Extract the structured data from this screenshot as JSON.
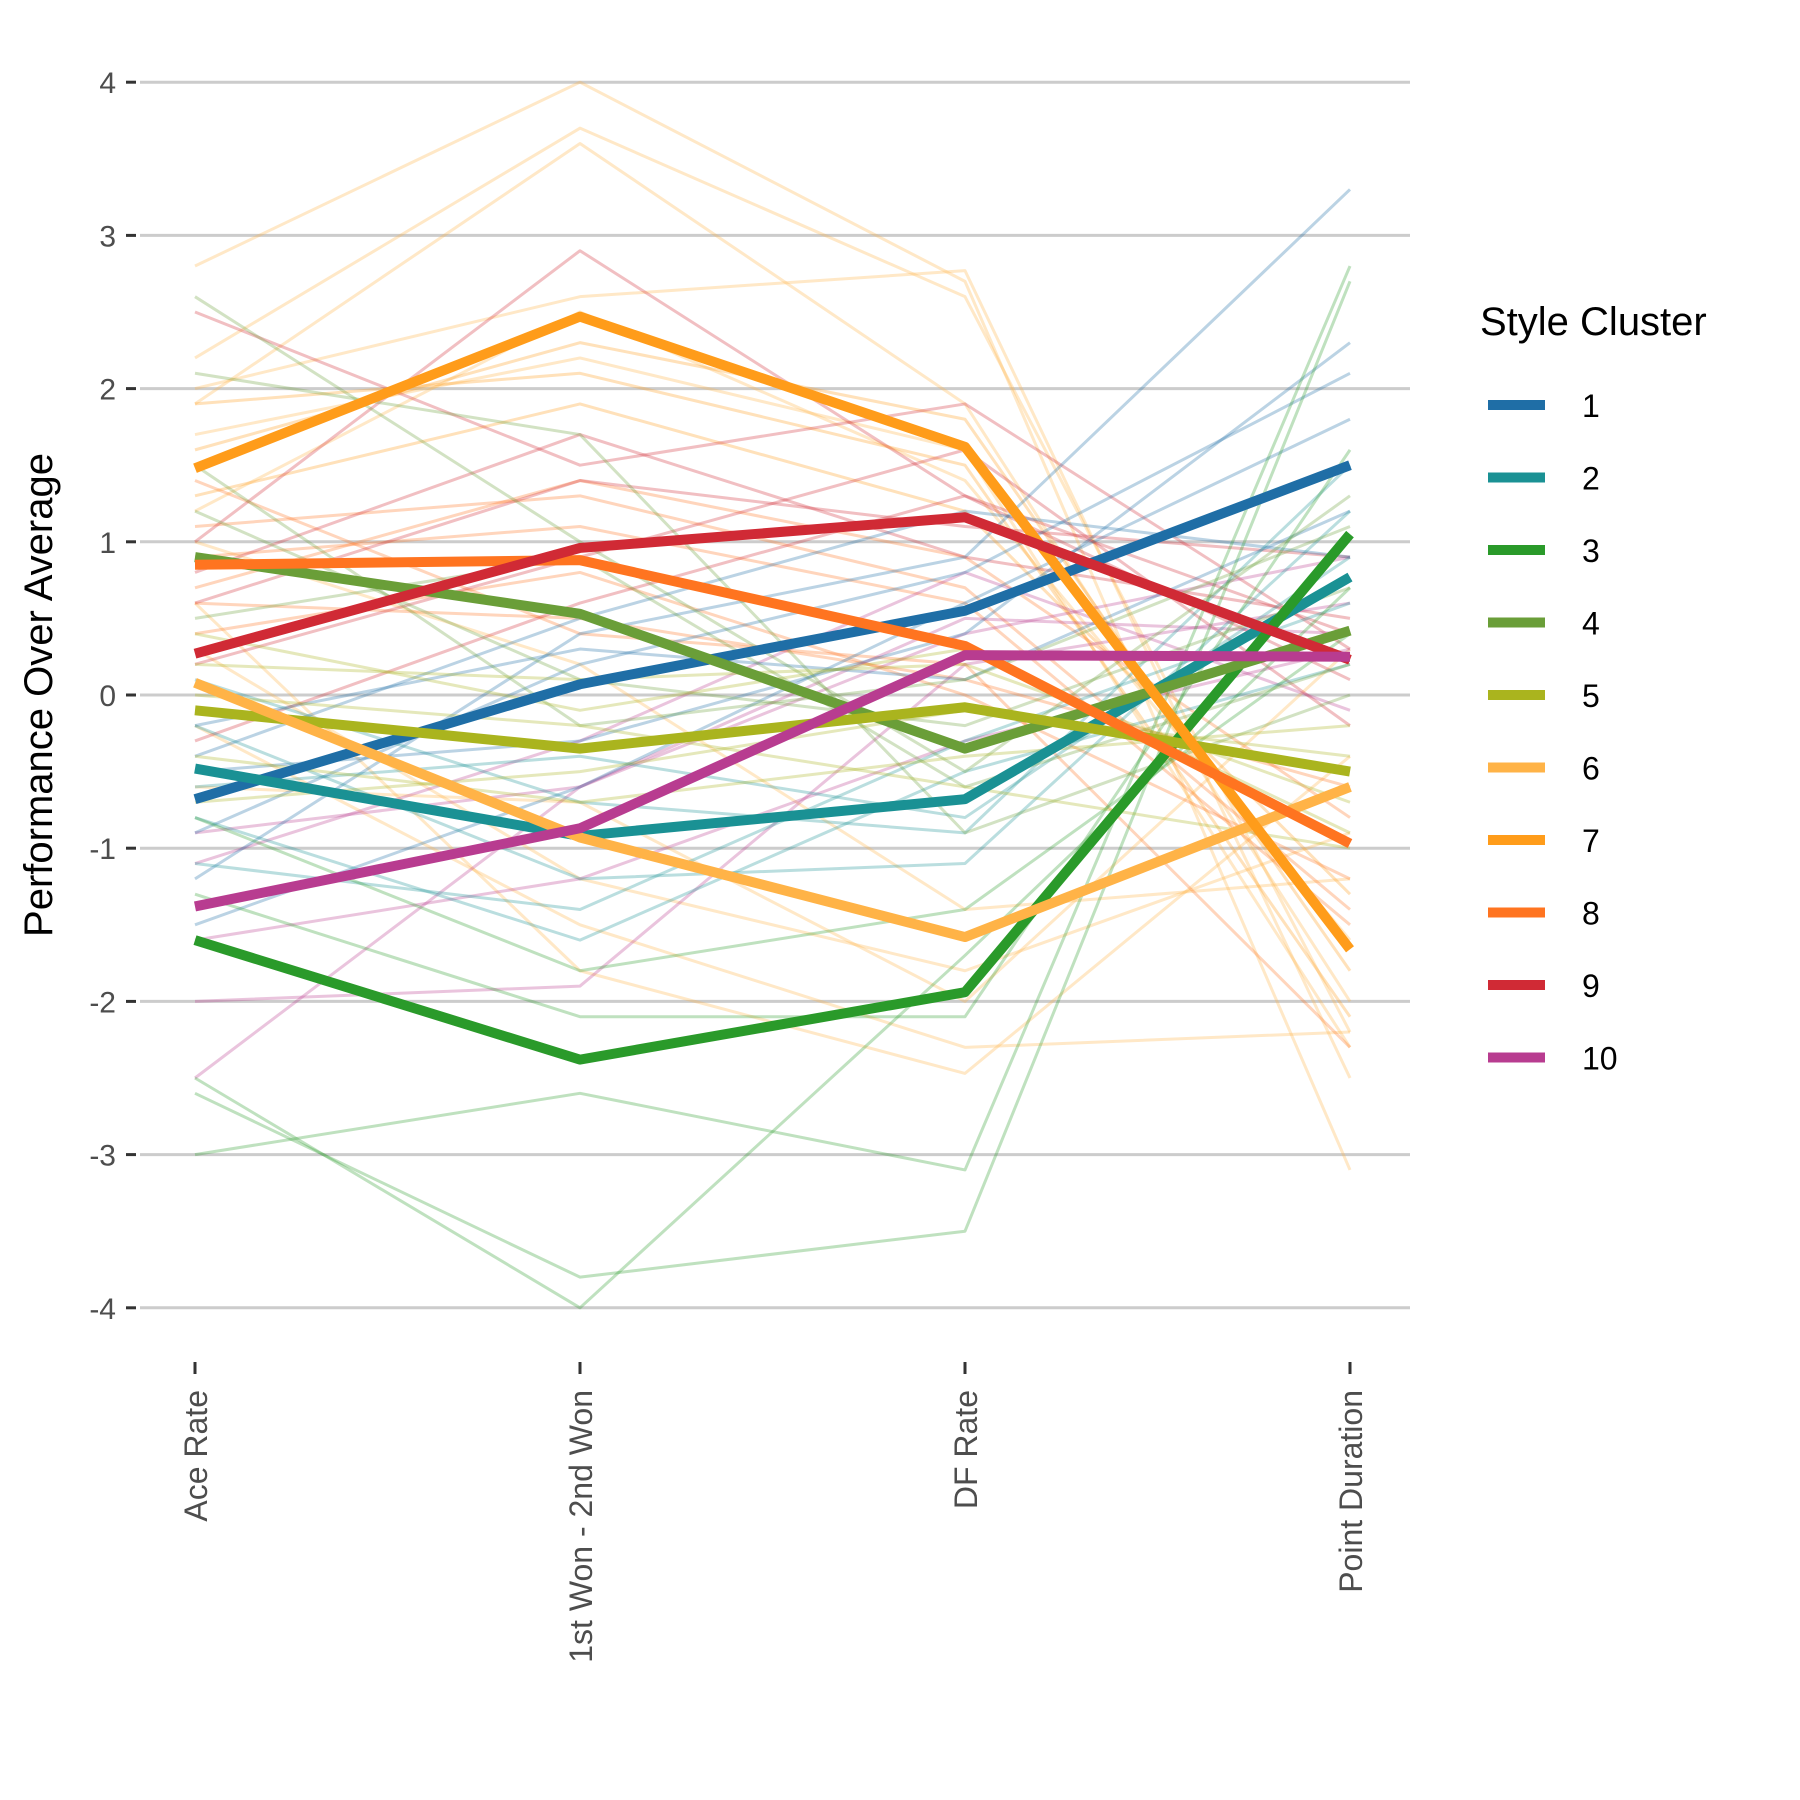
{
  "chart_data": {
    "type": "line",
    "title": "",
    "xlabel": "",
    "ylabel": "Performance Over Average",
    "categories": [
      "Ace Rate",
      "1st Won - 2nd Won",
      "DF Rate",
      "Point Duration"
    ],
    "ylim": [
      -4.3,
      4.2
    ],
    "yticks": [
      4,
      3,
      2,
      1,
      0,
      -1,
      -2,
      -3,
      -4
    ],
    "grid": "horizontal",
    "legend": {
      "title": "Style Cluster",
      "position": "right"
    },
    "series": [
      {
        "name": "1",
        "color": "#1f6ea6",
        "values": [
          -0.68,
          0.07,
          0.55,
          1.5
        ]
      },
      {
        "name": "2",
        "color": "#1a9194",
        "values": [
          -0.48,
          -0.92,
          -0.68,
          0.77
        ]
      },
      {
        "name": "3",
        "color": "#2a9a2a",
        "values": [
          -1.6,
          -2.38,
          -1.94,
          1.05
        ]
      },
      {
        "name": "4",
        "color": "#6a9e38",
        "values": [
          0.9,
          0.53,
          -0.35,
          0.42
        ]
      },
      {
        "name": "5",
        "color": "#aab41e",
        "values": [
          -0.1,
          -0.35,
          -0.08,
          -0.5
        ]
      },
      {
        "name": "6",
        "color": "#ffb347",
        "values": [
          0.08,
          -0.93,
          -1.58,
          -0.6
        ]
      },
      {
        "name": "7",
        "color": "#ff9c1a",
        "values": [
          1.48,
          2.47,
          1.62,
          -1.66
        ]
      },
      {
        "name": "8",
        "color": "#ff7420",
        "values": [
          0.85,
          0.88,
          0.32,
          -0.97
        ]
      },
      {
        "name": "9",
        "color": "#d02a35",
        "values": [
          0.27,
          0.96,
          1.16,
          0.23
        ]
      },
      {
        "name": "10",
        "color": "#b83c90",
        "values": [
          -1.38,
          -0.87,
          0.26,
          0.25
        ]
      }
    ],
    "background_lines": [
      {
        "cluster": "6",
        "values": [
          2.8,
          4.0,
          2.7,
          -3.1
        ]
      },
      {
        "cluster": "6",
        "values": [
          2.2,
          3.7,
          2.6,
          -2.2
        ]
      },
      {
        "cluster": "6",
        "values": [
          1.9,
          3.6,
          1.9,
          -2.0
        ]
      },
      {
        "cluster": "6",
        "values": [
          2.0,
          2.6,
          2.77,
          -2.5
        ]
      },
      {
        "cluster": "6",
        "values": [
          1.7,
          2.2,
          1.6,
          -2.3
        ]
      },
      {
        "cluster": "6",
        "values": [
          1.2,
          2.5,
          1.4,
          -1.6
        ]
      },
      {
        "cluster": "6",
        "values": [
          0.6,
          -1.8,
          -2.47,
          -0.4
        ]
      },
      {
        "cluster": "6",
        "values": [
          -0.2,
          -1.5,
          -2.3,
          -2.2
        ]
      },
      {
        "cluster": "6",
        "values": [
          0.3,
          -1.2,
          -1.8,
          -0.9
        ]
      },
      {
        "cluster": "6",
        "values": [
          1.0,
          0.2,
          -1.4,
          -1.2
        ]
      },
      {
        "cluster": "6",
        "values": [
          -0.6,
          -0.7,
          -2.0,
          0.3
        ]
      },
      {
        "cluster": "7",
        "values": [
          1.6,
          2.3,
          1.8,
          -1.8
        ]
      },
      {
        "cluster": "7",
        "values": [
          1.3,
          1.9,
          1.2,
          -1.3
        ]
      },
      {
        "cluster": "7",
        "values": [
          1.9,
          2.1,
          1.5,
          -2.1
        ]
      },
      {
        "cluster": "8",
        "values": [
          1.1,
          1.3,
          0.7,
          -1.4
        ]
      },
      {
        "cluster": "8",
        "values": [
          0.6,
          0.5,
          0.1,
          -0.6
        ]
      },
      {
        "cluster": "8",
        "values": [
          0.9,
          1.1,
          0.6,
          -1.5
        ]
      },
      {
        "cluster": "8",
        "values": [
          1.4,
          0.4,
          0.2,
          -2.3
        ]
      },
      {
        "cluster": "8",
        "values": [
          0.7,
          1.4,
          0.9,
          -0.8
        ]
      },
      {
        "cluster": "8",
        "values": [
          0.4,
          0.8,
          0.0,
          -1.2
        ]
      },
      {
        "cluster": "9",
        "values": [
          2.5,
          1.5,
          1.9,
          0.3
        ]
      },
      {
        "cluster": "9",
        "values": [
          1.0,
          2.9,
          1.3,
          0.4
        ]
      },
      {
        "cluster": "9",
        "values": [
          0.2,
          0.9,
          1.6,
          -0.2
        ]
      },
      {
        "cluster": "9",
        "values": [
          0.6,
          1.4,
          1.1,
          0.9
        ]
      },
      {
        "cluster": "9",
        "values": [
          -0.3,
          0.6,
          1.3,
          0.1
        ]
      },
      {
        "cluster": "9",
        "values": [
          0.8,
          1.7,
          0.9,
          0.5
        ]
      },
      {
        "cluster": "10",
        "values": [
          -2.5,
          -0.6,
          0.5,
          0.4
        ]
      },
      {
        "cluster": "10",
        "values": [
          -2.0,
          -1.9,
          0.2,
          0.6
        ]
      },
      {
        "cluster": "10",
        "values": [
          -1.1,
          -0.3,
          0.8,
          -0.1
        ]
      },
      {
        "cluster": "10",
        "values": [
          -1.6,
          -1.2,
          -0.3,
          0.3
        ]
      },
      {
        "cluster": "10",
        "values": [
          -0.9,
          -0.6,
          0.4,
          0.9
        ]
      },
      {
        "cluster": "1",
        "values": [
          -1.2,
          0.4,
          0.9,
          3.3
        ]
      },
      {
        "cluster": "1",
        "values": [
          -0.5,
          -0.3,
          0.4,
          2.3
        ]
      },
      {
        "cluster": "1",
        "values": [
          -0.9,
          0.2,
          0.8,
          2.1
        ]
      },
      {
        "cluster": "1",
        "values": [
          -0.2,
          0.3,
          0.1,
          1.2
        ]
      },
      {
        "cluster": "1",
        "values": [
          -1.5,
          -0.6,
          0.6,
          1.8
        ]
      },
      {
        "cluster": "1",
        "values": [
          -0.4,
          0.5,
          1.2,
          0.9
        ]
      },
      {
        "cluster": "2",
        "values": [
          -0.2,
          -1.2,
          -1.1,
          1.2
        ]
      },
      {
        "cluster": "2",
        "values": [
          -0.8,
          -1.6,
          -0.5,
          0.2
        ]
      },
      {
        "cluster": "2",
        "values": [
          0.1,
          -0.7,
          -0.9,
          1.5
        ]
      },
      {
        "cluster": "2",
        "values": [
          -1.1,
          -1.4,
          -0.3,
          0.6
        ]
      },
      {
        "cluster": "2",
        "values": [
          -0.6,
          -0.4,
          -0.8,
          0.9
        ]
      },
      {
        "cluster": "3",
        "values": [
          -2.6,
          -3.8,
          -3.5,
          2.7
        ]
      },
      {
        "cluster": "3",
        "values": [
          -3.0,
          -2.6,
          -3.1,
          2.8
        ]
      },
      {
        "cluster": "3",
        "values": [
          -2.5,
          -4.0,
          -1.7,
          0.7
        ]
      },
      {
        "cluster": "3",
        "values": [
          -1.3,
          -2.1,
          -2.1,
          1.6
        ]
      },
      {
        "cluster": "3",
        "values": [
          -0.8,
          -1.8,
          -1.4,
          0.4
        ]
      },
      {
        "cluster": "4",
        "values": [
          2.6,
          1.0,
          -0.5,
          1.3
        ]
      },
      {
        "cluster": "4",
        "values": [
          2.1,
          1.7,
          -0.9,
          0.0
        ]
      },
      {
        "cluster": "4",
        "values": [
          1.2,
          0.1,
          -0.2,
          0.7
        ]
      },
      {
        "cluster": "4",
        "values": [
          0.5,
          0.9,
          -0.6,
          0.2
        ]
      },
      {
        "cluster": "4",
        "values": [
          1.5,
          -0.2,
          0.1,
          1.1
        ]
      },
      {
        "cluster": "5",
        "values": [
          0.4,
          -0.1,
          0.3,
          -0.9
        ]
      },
      {
        "cluster": "5",
        "values": [
          -0.4,
          -0.7,
          -0.4,
          -0.2
        ]
      },
      {
        "cluster": "5",
        "values": [
          0.2,
          0.1,
          0.2,
          -0.7
        ]
      },
      {
        "cluster": "5",
        "values": [
          -0.7,
          -0.5,
          -0.1,
          -0.4
        ]
      },
      {
        "cluster": "5",
        "values": [
          0.0,
          -0.2,
          -0.6,
          -1.0
        ]
      }
    ]
  }
}
